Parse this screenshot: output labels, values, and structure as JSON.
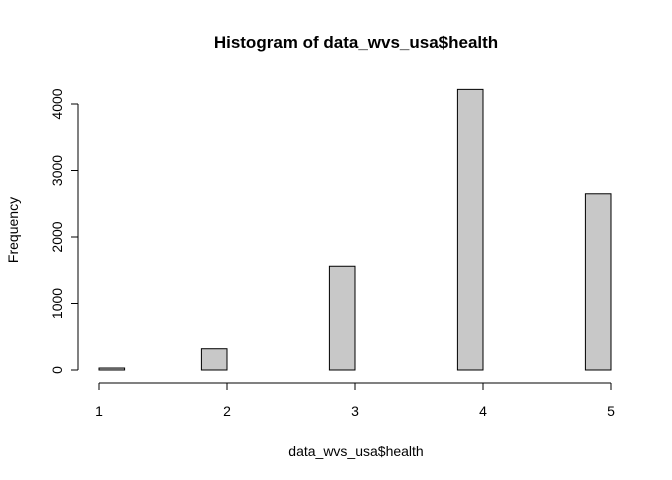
{
  "chart_data": {
    "type": "bar",
    "title": "Histogram of data_wvs_usa$health",
    "xlabel": "data_wvs_usa$health",
    "ylabel": "Frequency",
    "bins": [
      {
        "x0": 1.0,
        "x1": 1.2,
        "count": 30
      },
      {
        "x0": 1.2,
        "x1": 1.4,
        "count": 0
      },
      {
        "x0": 1.4,
        "x1": 1.6,
        "count": 0
      },
      {
        "x0": 1.6,
        "x1": 1.8,
        "count": 0
      },
      {
        "x0": 1.8,
        "x1": 2.0,
        "count": 320
      },
      {
        "x0": 2.0,
        "x1": 2.2,
        "count": 0
      },
      {
        "x0": 2.2,
        "x1": 2.4,
        "count": 0
      },
      {
        "x0": 2.4,
        "x1": 2.6,
        "count": 0
      },
      {
        "x0": 2.6,
        "x1": 2.8,
        "count": 0
      },
      {
        "x0": 2.8,
        "x1": 3.0,
        "count": 1560
      },
      {
        "x0": 3.0,
        "x1": 3.2,
        "count": 0
      },
      {
        "x0": 3.2,
        "x1": 3.4,
        "count": 0
      },
      {
        "x0": 3.4,
        "x1": 3.6,
        "count": 0
      },
      {
        "x0": 3.6,
        "x1": 3.8,
        "count": 0
      },
      {
        "x0": 3.8,
        "x1": 4.0,
        "count": 4220
      },
      {
        "x0": 4.0,
        "x1": 4.2,
        "count": 0
      },
      {
        "x0": 4.2,
        "x1": 4.4,
        "count": 0
      },
      {
        "x0": 4.4,
        "x1": 4.6,
        "count": 0
      },
      {
        "x0": 4.6,
        "x1": 4.8,
        "count": 0
      },
      {
        "x0": 4.8,
        "x1": 5.0,
        "count": 2650
      }
    ],
    "xlim": [
      1,
      5
    ],
    "ylim": [
      0,
      4000
    ],
    "x_ticks": [
      "1",
      "2",
      "3",
      "4",
      "5"
    ],
    "y_ticks": [
      "0",
      "1000",
      "2000",
      "3000",
      "4000"
    ],
    "grid": false,
    "bar_fill": "#c8c8c8",
    "bar_stroke": "#000000"
  }
}
